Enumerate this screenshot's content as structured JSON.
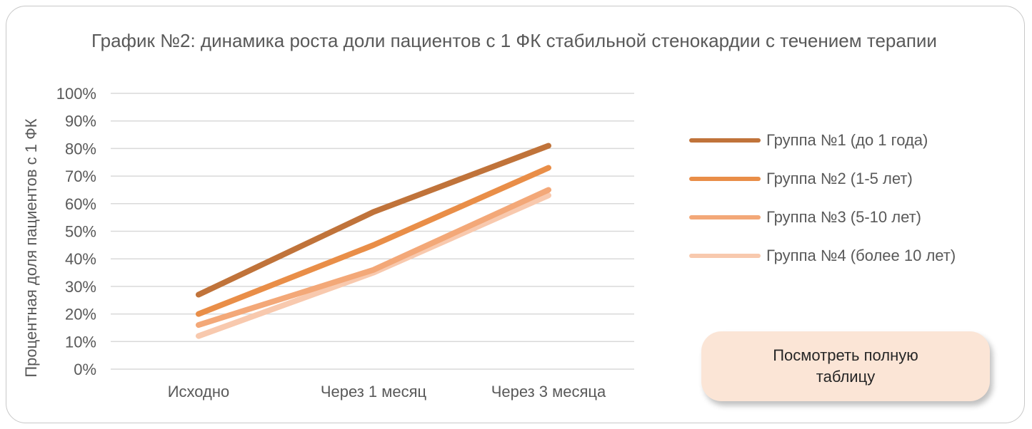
{
  "chart_data": {
    "type": "line",
    "title": "График №2: динамика роста доли пациентов с 1 ФК стабильной стенокардии с течением терапии",
    "ylabel": "Процентная доля пациентов с 1 ФК",
    "xlabel": "",
    "categories": [
      "Исходно",
      "Через 1 месяц",
      "Через 3 месяца"
    ],
    "yticks": [
      "0%",
      "10%",
      "20%",
      "30%",
      "40%",
      "50%",
      "60%",
      "70%",
      "80%",
      "90%",
      "100%"
    ],
    "ylim": [
      0,
      100
    ],
    "grid": true,
    "legend_position": "right",
    "series": [
      {
        "name": "Группа №1 (до 1 года)",
        "values": [
          27,
          57,
          81
        ],
        "color": "#c0733a"
      },
      {
        "name": "Группа №2 (1-5 лет)",
        "values": [
          20,
          45,
          73
        ],
        "color": "#e98e48"
      },
      {
        "name": "Группа №3 (5-10 лет)",
        "values": [
          16,
          36,
          65
        ],
        "color": "#f3a878"
      },
      {
        "name": "Группа №4 (более 10 лет)",
        "values": [
          12,
          35,
          63
        ],
        "color": "#f8c9ae"
      }
    ]
  },
  "cta": {
    "label": "Посмотреть полную таблицу"
  }
}
